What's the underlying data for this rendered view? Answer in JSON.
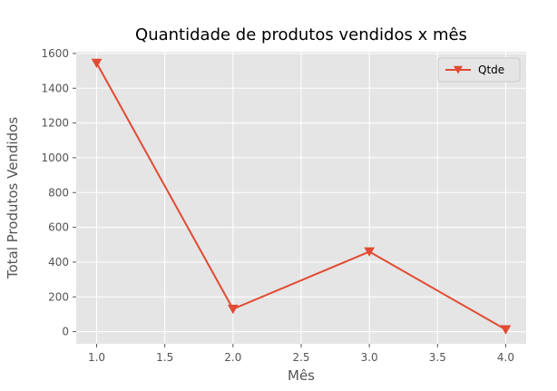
{
  "chart_data": {
    "type": "line",
    "title": "Quantidade de produtos vendidos x mês",
    "xlabel": "Mês",
    "ylabel": "Total Produtos Vendidos",
    "xlim": [
      0.85,
      4.15
    ],
    "ylim": [
      -70,
      1610
    ],
    "xticks": [
      1.0,
      1.5,
      2.0,
      2.5,
      3.0,
      3.5,
      4.0
    ],
    "xtick_labels": [
      "1.0",
      "1.5",
      "2.0",
      "2.5",
      "3.0",
      "3.5",
      "4.0"
    ],
    "yticks": [
      0,
      200,
      400,
      600,
      800,
      1000,
      1200,
      1400,
      1600
    ],
    "ytick_labels": [
      "0",
      "200",
      "400",
      "600",
      "800",
      "1000",
      "1200",
      "1400",
      "1600"
    ],
    "grid": true,
    "legend_position": "top-right",
    "series": [
      {
        "name": "Qtde",
        "marker": "triangle-down",
        "color": "#E24A33",
        "x": [
          1.0,
          2.0,
          3.0,
          4.0
        ],
        "y": [
          1545,
          130,
          460,
          12
        ]
      }
    ]
  },
  "style": {
    "plot_background": "#E5E5E5",
    "grid_color": "#FFFFFF",
    "legend_background": "#E5E5E5",
    "legend_border": "#CCCCCC"
  }
}
